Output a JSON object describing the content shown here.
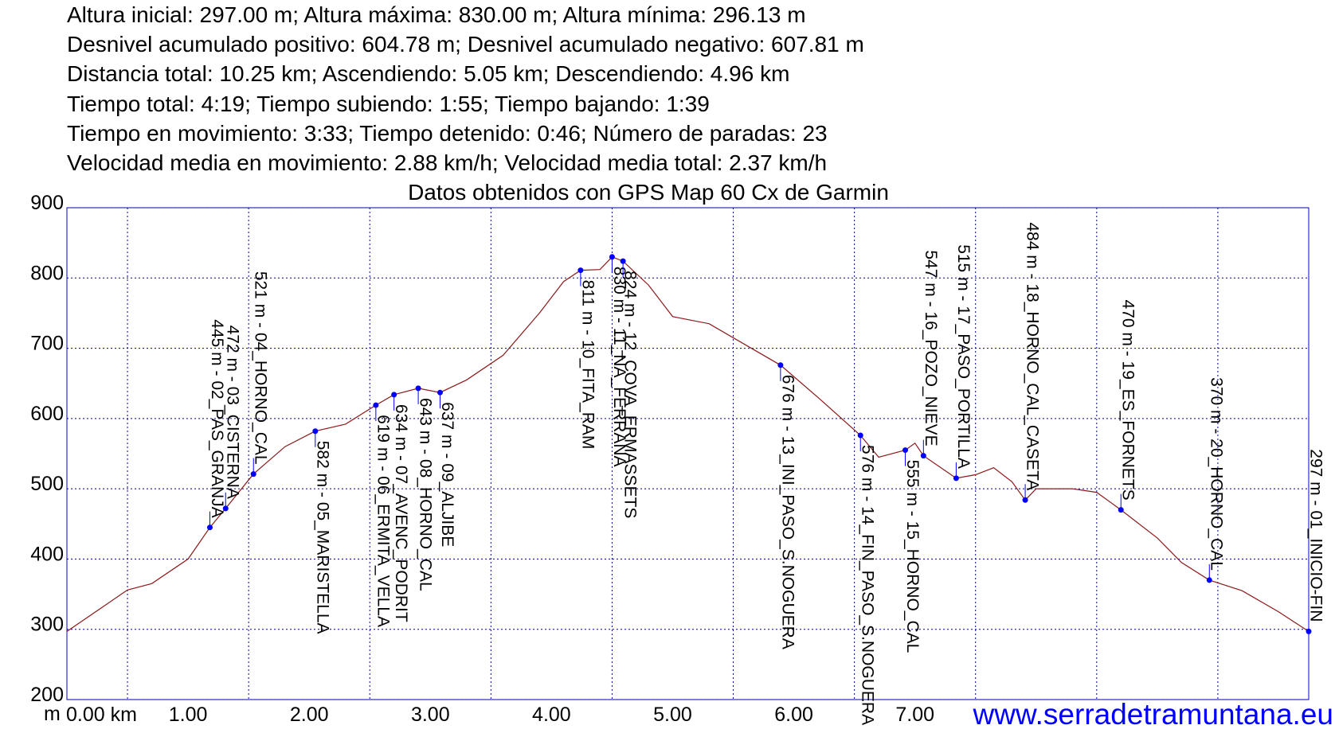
{
  "chart_data": {
    "type": "line",
    "header": [
      "Altura inicial: 297.00 m; Altura máxima: 830.00 m; Altura mínima: 296.13 m",
      "Desnivel acumulado positivo: 604.78 m; Desnivel acumulado negativo: 607.81 m",
      "Distancia total: 10.25 km; Ascendiendo: 5.05 km; Descendiendo: 4.96 km",
      "Tiempo total: 4:19; Tiempo subiendo: 1:55; Tiempo bajando: 1:39",
      "Tiempo en movimiento: 3:33; Tiempo detenido: 0:46; Número de paradas: 23",
      "Velocidad media en movimiento: 2.88 km/h; Velocidad media total: 2.37 km/h"
    ],
    "title": "Datos obtenidos con GPS Map 60 Cx de Garmin",
    "y_label": "m",
    "watermark": "www.serradetramuntana.eu",
    "xlim": [
      0,
      10.25
    ],
    "ylim": [
      200,
      900
    ],
    "xticks": [
      {
        "value": 0,
        "label": "0.00 km"
      },
      {
        "value": 1,
        "label": "1.00"
      },
      {
        "value": 2,
        "label": "2.00"
      },
      {
        "value": 3,
        "label": "3.00"
      },
      {
        "value": 4,
        "label": "4.00"
      },
      {
        "value": 5,
        "label": "5.00"
      },
      {
        "value": 6,
        "label": "6.00"
      },
      {
        "value": 7,
        "label": "7.00"
      }
    ],
    "xgrid": [
      0.5,
      1.5,
      2.5,
      3.5,
      4.5,
      5.5,
      6.5,
      7.5,
      8.5,
      9.5
    ],
    "yticks": [
      200,
      300,
      400,
      500,
      600,
      700,
      800,
      900
    ],
    "grid": true,
    "x": [
      0,
      0.5,
      0.7,
      1.0,
      1.18,
      1.31,
      1.54,
      1.8,
      2.05,
      2.3,
      2.55,
      2.7,
      2.9,
      3.08,
      3.3,
      3.6,
      3.9,
      4.1,
      4.24,
      4.4,
      4.5,
      4.59,
      4.8,
      5.0,
      5.3,
      5.6,
      5.89,
      6.2,
      6.55,
      6.7,
      6.92,
      7.0,
      7.07,
      7.34,
      7.5,
      7.65,
      7.8,
      7.91,
      8.0,
      8.3,
      8.5,
      8.7,
      9.0,
      9.2,
      9.43,
      9.7,
      10.0,
      10.25
    ],
    "series": [
      {
        "name": "Altura",
        "color": "#8b1a1a",
        "values": [
          297,
          356,
          365,
          400,
          445,
          472,
          521,
          560,
          582,
          592,
          619,
          634,
          643,
          637,
          655,
          690,
          750,
          795,
          811,
          812,
          830,
          824,
          790,
          745,
          735,
          705,
          676,
          630,
          576,
          545,
          555,
          565,
          547,
          515,
          520,
          530,
          510,
          484,
          500,
          500,
          495,
          470,
          430,
          395,
          370,
          355,
          325,
          297
        ]
      }
    ],
    "waypoints": {
      "color": "#0000ff",
      "x": [
        1.18,
        1.31,
        1.54,
        2.05,
        2.55,
        2.7,
        2.9,
        3.08,
        4.24,
        4.5,
        4.59,
        5.89,
        6.55,
        6.92,
        7.07,
        7.34,
        7.91,
        8.7,
        9.43,
        10.25
      ],
      "values": [
        445,
        472,
        521,
        582,
        619,
        634,
        643,
        637,
        811,
        830,
        824,
        676,
        576,
        555,
        547,
        515,
        484,
        470,
        370,
        297
      ],
      "labels": [
        "445 m - 02_PAS_GRANJA",
        "472 m - 03_CISTERNA",
        "521 m - 04_HORNO_CAL",
        "582 m - 05_MARISTELLA",
        "619 m - 06_ERMITA_VELLA",
        "634 m - 07_AVENC_PODRIT",
        "643 m - 08_HORNO_CAL",
        "637 m - 09_ALJIBE",
        "811 m - 10_FITA_RAM",
        "830 m - 11_NA_FERRANA",
        "824 m - 12_COVA_ERMASSETS",
        "676 m - 13_INI_PASO_S.NOGUERA",
        "576 m - 14_FIN_PASO_S.NOGUERA",
        "555 m - 15_HORNO_CAL",
        "547 m - 16_POZO_NIEVE",
        "515 m - 17_PASO_PORTILLA",
        "484 m - 18_HORNO_CAL_CASETA",
        "470 m - 19_ES_FORNETS",
        "370 m - 20_HORNO_CAL",
        "297 m - 01_INICIO-FIN"
      ]
    }
  }
}
